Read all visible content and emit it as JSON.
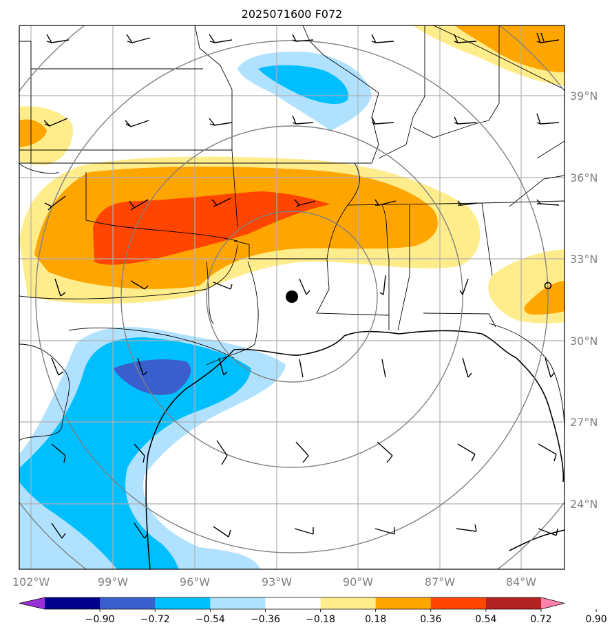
{
  "title": "2025071600 F072",
  "map": {
    "lon_labels": [
      "102°W",
      "99°W",
      "96°W",
      "93°W",
      "90°W",
      "87°W",
      "84°W"
    ],
    "lat_labels": [
      "39°N",
      "36°N",
      "33°N",
      "30°N",
      "27°N",
      "24°N"
    ],
    "lon_range": [
      -102.4,
      -82.3
    ],
    "lat_range": [
      21.9,
      41.8
    ],
    "center_point": {
      "lon": -92.4,
      "lat": 31.5
    },
    "secondary_point": {
      "lon": -83.3,
      "lat": 31.9
    }
  },
  "colorbar": {
    "tick_labels": [
      "−0.90",
      "−0.72",
      "−0.54",
      "−0.36",
      "−0.18",
      "0.18",
      "0.36",
      "0.54",
      "0.72",
      "0.90"
    ],
    "colors": [
      "#9b30d9",
      "#00008b",
      "#3a5fcd",
      "#00bfff",
      "#b0e2ff",
      "#ffffff",
      "#ffec8b",
      "#ffa500",
      "#ff4500",
      "#b22222",
      "#ff82ab"
    ]
  },
  "chart_data": {
    "type": "heatmap",
    "title": "2025071600 F072",
    "levels": [
      -0.9,
      -0.72,
      -0.54,
      -0.36,
      -0.18,
      0.18,
      0.36,
      0.54,
      0.72,
      0.9
    ],
    "regions": [
      {
        "label": "positive anomaly band",
        "center_lon": -94.5,
        "center_lat": 34.5,
        "max_level": 0.72
      },
      {
        "label": "negative anomaly Texas coast",
        "center_lon": -97.5,
        "center_lat": 28.8,
        "min_level": -0.72
      },
      {
        "label": "negative anomaly Missouri",
        "center_lon": -91.0,
        "center_lat": 39.5,
        "min_level": -0.36
      },
      {
        "label": "positive anomaly Illinois NE",
        "center_lon": -84.5,
        "center_lat": 40.5,
        "max_level": 0.54
      },
      {
        "label": "positive anomaly Kansas W",
        "center_lon": -101.5,
        "center_lat": 37.8,
        "max_level": 0.54
      },
      {
        "label": "positive anomaly Georgia",
        "center_lon": -83.5,
        "center_lat": 31.5,
        "max_level": 0.54
      }
    ]
  }
}
